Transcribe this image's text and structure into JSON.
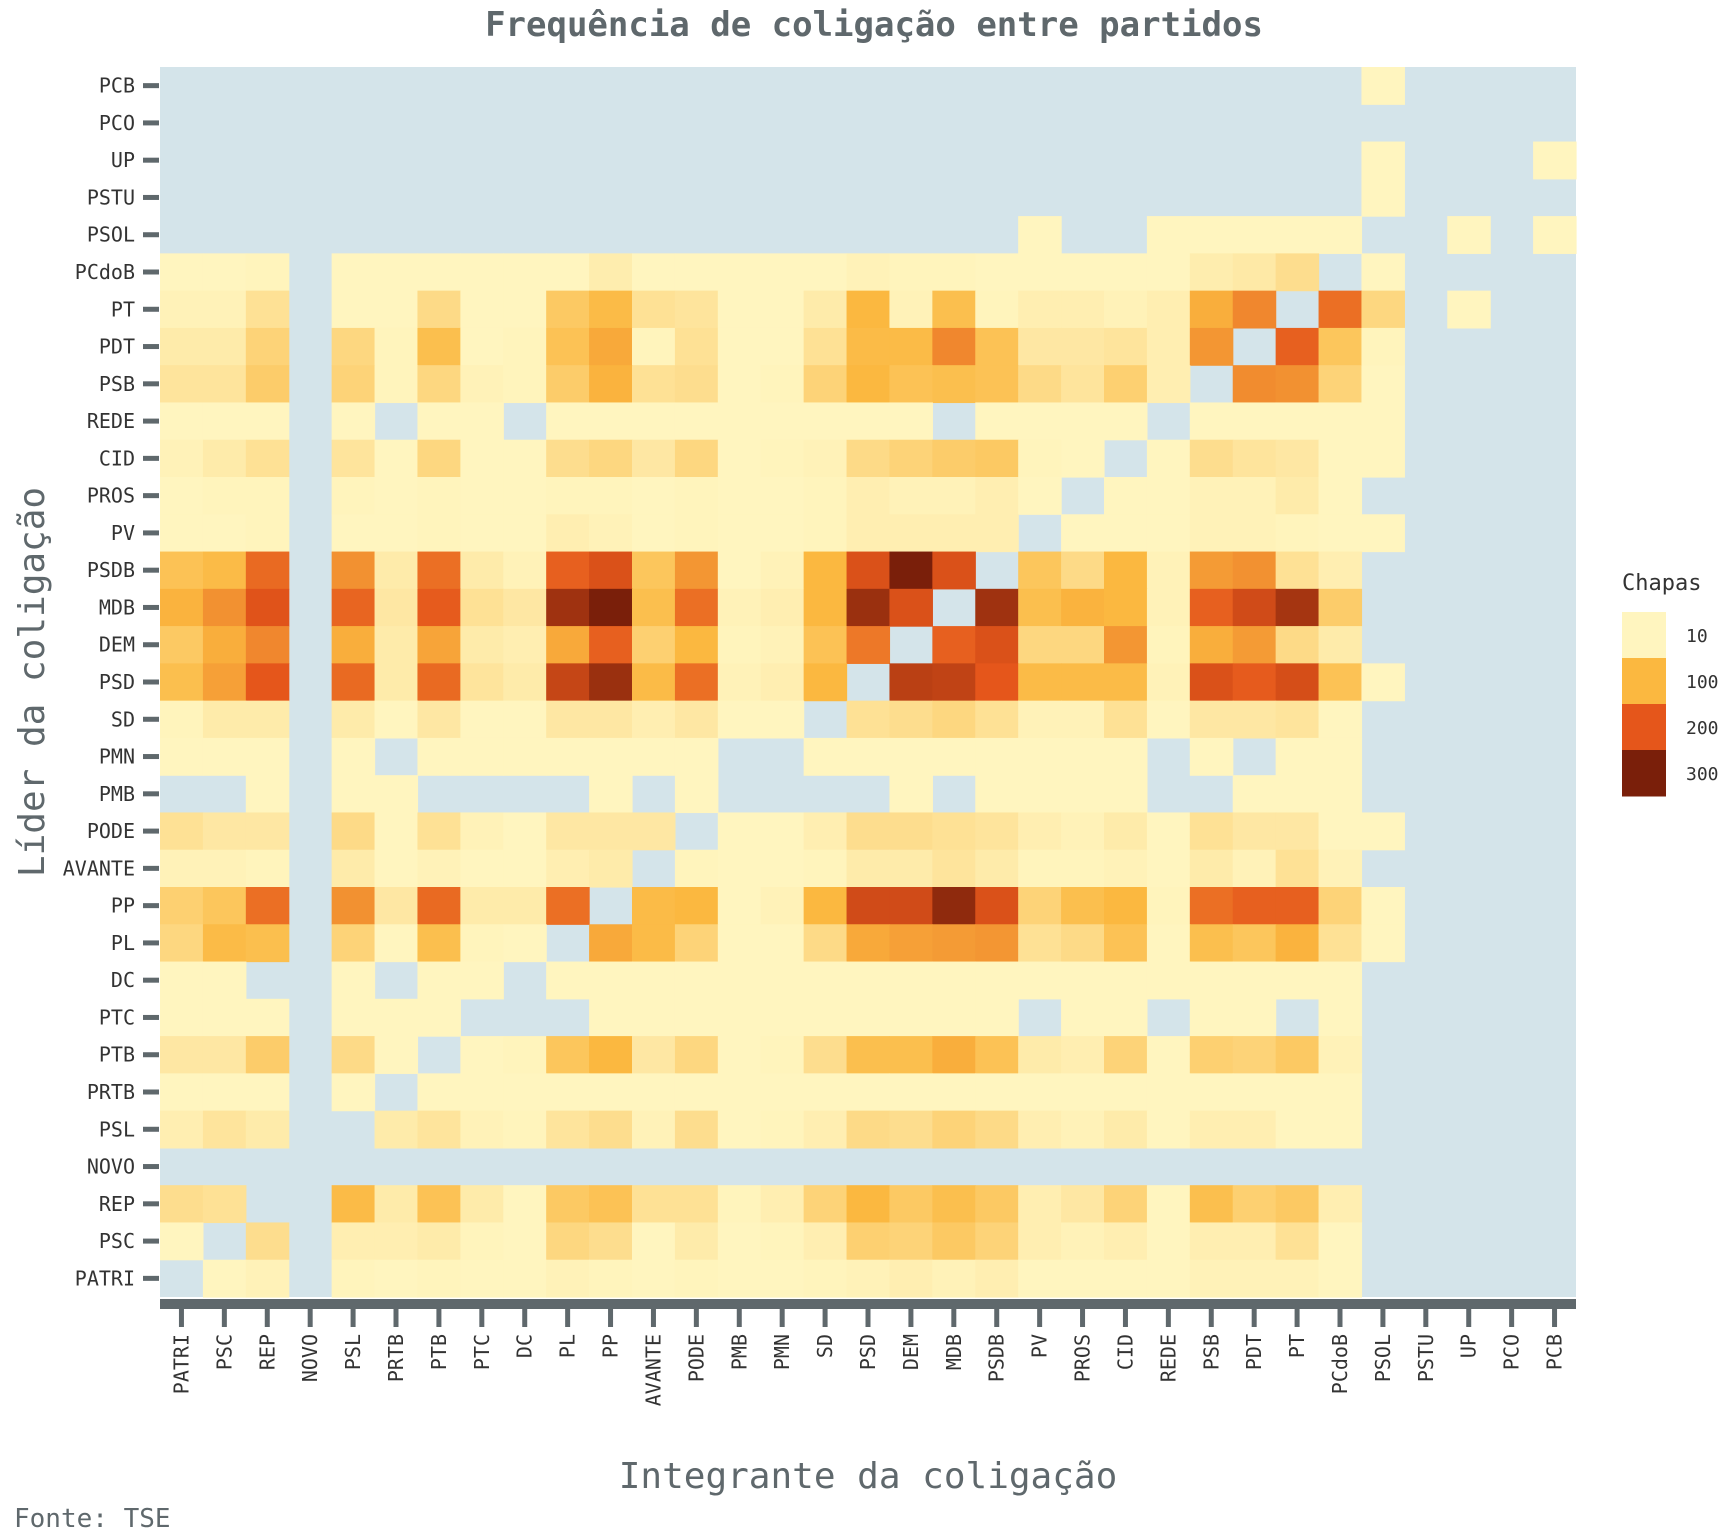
{
  "chart_data": {
    "type": "heatmap",
    "title": "Frequência de coligação entre partidos",
    "xlabel": "Integrante da coligação",
    "ylabel": "Líder da coligação",
    "caption": "Fonte: TSE",
    "legend": {
      "title": "Chapas",
      "ticks": [
        10,
        100,
        200,
        300
      ],
      "tick_labels": [
        "10",
        "100",
        "200",
        "300"
      ],
      "colors": [
        "#FFF5BF",
        "#FBB840",
        "#E5561B",
        "#7A1F0A"
      ],
      "placement": "right"
    },
    "colors": {
      "missing": "#D4E4EA",
      "text": "#5F686C",
      "axis": "#5F686C"
    },
    "x_categories": [
      "PATRI",
      "PSC",
      "REP",
      "NOVO",
      "PSL",
      "PRTB",
      "PTB",
      "PTC",
      "DC",
      "PL",
      "PP",
      "AVANTE",
      "PODE",
      "PMB",
      "PMN",
      "SD",
      "PSD",
      "DEM",
      "MDB",
      "PSDB",
      "PV",
      "PROS",
      "CID",
      "REDE",
      "PSB",
      "PDT",
      "PT",
      "PCdoB",
      "PSOL",
      "PSTU",
      "UP",
      "PCO",
      "PCB"
    ],
    "y_categories": [
      "PCB",
      "PCO",
      "UP",
      "PSTU",
      "PSOL",
      "PCdoB",
      "PT",
      "PDT",
      "PSB",
      "REDE",
      "CID",
      "PROS",
      "PV",
      "PSDB",
      "MDB",
      "DEM",
      "PSD",
      "SD",
      "PMN",
      "PMB",
      "PODE",
      "AVANTE",
      "PP",
      "PL",
      "DC",
      "PTC",
      "PTB",
      "PRTB",
      "PSL",
      "NOVO",
      "REP",
      "PSC",
      "PATRI"
    ],
    "grid": false,
    "values": [
      [
        null,
        null,
        null,
        null,
        null,
        null,
        null,
        null,
        null,
        null,
        null,
        null,
        null,
        null,
        null,
        null,
        null,
        null,
        null,
        null,
        null,
        null,
        null,
        null,
        null,
        null,
        null,
        null,
        2,
        null,
        null,
        null,
        null
      ],
      [
        null,
        null,
        null,
        null,
        null,
        null,
        null,
        null,
        null,
        null,
        null,
        null,
        null,
        null,
        null,
        null,
        null,
        null,
        null,
        null,
        null,
        null,
        null,
        null,
        null,
        null,
        null,
        null,
        null,
        null,
        null,
        null,
        null
      ],
      [
        null,
        null,
        null,
        null,
        null,
        null,
        null,
        null,
        null,
        null,
        null,
        null,
        null,
        null,
        null,
        null,
        null,
        null,
        null,
        null,
        null,
        null,
        null,
        null,
        null,
        null,
        null,
        null,
        2,
        null,
        null,
        null,
        2
      ],
      [
        null,
        null,
        null,
        null,
        null,
        null,
        null,
        null,
        null,
        null,
        null,
        null,
        null,
        null,
        null,
        null,
        null,
        null,
        null,
        null,
        null,
        null,
        null,
        null,
        null,
        null,
        null,
        null,
        2,
        null,
        null,
        null,
        null
      ],
      [
        null,
        null,
        null,
        null,
        null,
        null,
        null,
        null,
        null,
        null,
        null,
        null,
        null,
        null,
        null,
        null,
        null,
        null,
        null,
        null,
        2,
        null,
        null,
        2,
        2,
        2,
        5,
        5,
        null,
        null,
        5,
        null,
        8
      ],
      [
        8,
        8,
        12,
        null,
        5,
        5,
        8,
        5,
        5,
        8,
        22,
        5,
        5,
        5,
        5,
        8,
        15,
        12,
        12,
        8,
        5,
        8,
        8,
        5,
        22,
        28,
        45,
        null,
        8,
        null,
        null,
        null,
        null
      ],
      [
        15,
        15,
        40,
        null,
        5,
        5,
        50,
        8,
        8,
        75,
        95,
        40,
        35,
        5,
        5,
        25,
        100,
        15,
        90,
        12,
        20,
        20,
        15,
        20,
        110,
        150,
        null,
        175,
        55,
        null,
        8,
        null,
        null
      ],
      [
        25,
        25,
        60,
        null,
        55,
        12,
        90,
        8,
        12,
        85,
        115,
        12,
        40,
        5,
        5,
        40,
        95,
        95,
        150,
        85,
        30,
        30,
        35,
        20,
        135,
        null,
        190,
        80,
        12,
        null,
        null,
        null,
        null
      ],
      [
        35,
        35,
        70,
        null,
        60,
        12,
        55,
        15,
        12,
        70,
        105,
        40,
        45,
        5,
        12,
        60,
        100,
        85,
        90,
        85,
        50,
        35,
        65,
        20,
        null,
        145,
        140,
        60,
        8,
        null,
        null,
        null,
        null
      ],
      [
        5,
        5,
        5,
        null,
        5,
        null,
        5,
        5,
        null,
        5,
        5,
        5,
        5,
        5,
        5,
        5,
        5,
        5,
        null,
        5,
        5,
        5,
        5,
        null,
        5,
        5,
        8,
        5,
        5,
        null,
        null,
        null,
        null
      ],
      [
        15,
        25,
        40,
        null,
        35,
        10,
        55,
        10,
        10,
        45,
        55,
        30,
        55,
        5,
        12,
        15,
        50,
        60,
        70,
        75,
        12,
        10,
        null,
        8,
        45,
        35,
        30,
        10,
        8,
        null,
        null,
        null,
        null
      ],
      [
        8,
        12,
        12,
        null,
        12,
        8,
        12,
        10,
        10,
        12,
        12,
        10,
        12,
        5,
        10,
        12,
        20,
        15,
        15,
        20,
        8,
        null,
        8,
        8,
        15,
        15,
        25,
        10,
        null,
        null,
        null,
        null,
        null
      ],
      [
        10,
        8,
        12,
        null,
        10,
        8,
        12,
        8,
        8,
        20,
        15,
        10,
        12,
        5,
        8,
        12,
        20,
        20,
        20,
        20,
        null,
        8,
        10,
        8,
        15,
        15,
        12,
        10,
        8,
        null,
        null,
        null,
        null
      ],
      [
        85,
        95,
        180,
        null,
        140,
        25,
        175,
        25,
        15,
        190,
        210,
        80,
        135,
        10,
        15,
        100,
        210,
        330,
        210,
        null,
        80,
        50,
        100,
        15,
        130,
        140,
        40,
        20,
        null,
        null,
        null,
        null,
        null
      ],
      [
        105,
        140,
        205,
        null,
        185,
        30,
        195,
        40,
        30,
        265,
        320,
        90,
        175,
        15,
        20,
        100,
        270,
        210,
        null,
        265,
        90,
        105,
        100,
        15,
        190,
        220,
        260,
        70,
        null,
        null,
        null,
        null,
        null
      ],
      [
        75,
        110,
        150,
        null,
        110,
        25,
        120,
        25,
        20,
        115,
        190,
        65,
        100,
        12,
        15,
        85,
        165,
        null,
        190,
        210,
        55,
        55,
        135,
        12,
        110,
        130,
        50,
        25,
        null,
        null,
        null,
        null,
        null
      ],
      [
        90,
        125,
        200,
        null,
        180,
        25,
        180,
        35,
        25,
        230,
        270,
        95,
        175,
        15,
        20,
        100,
        null,
        240,
        235,
        200,
        95,
        95,
        95,
        15,
        210,
        195,
        215,
        85,
        5,
        null,
        null,
        null,
        null
      ],
      [
        12,
        25,
        25,
        null,
        25,
        10,
        30,
        10,
        10,
        30,
        30,
        20,
        30,
        5,
        10,
        null,
        40,
        45,
        55,
        40,
        15,
        15,
        40,
        5,
        30,
        30,
        35,
        10,
        null,
        null,
        null,
        null,
        null
      ],
      [
        5,
        5,
        5,
        null,
        5,
        null,
        5,
        5,
        5,
        5,
        5,
        5,
        5,
        null,
        null,
        5,
        5,
        5,
        5,
        5,
        5,
        5,
        5,
        null,
        5,
        null,
        5,
        5,
        null,
        null,
        null,
        null,
        null
      ],
      [
        null,
        null,
        5,
        null,
        5,
        5,
        null,
        null,
        null,
        null,
        5,
        null,
        5,
        null,
        null,
        null,
        null,
        5,
        null,
        5,
        5,
        5,
        5,
        null,
        null,
        5,
        5,
        5,
        null,
        null,
        null,
        null,
        null
      ],
      [
        40,
        30,
        30,
        null,
        50,
        10,
        40,
        15,
        10,
        30,
        30,
        30,
        null,
        5,
        10,
        20,
        45,
        45,
        40,
        35,
        20,
        15,
        25,
        5,
        40,
        30,
        30,
        10,
        5,
        null,
        null,
        null,
        null
      ],
      [
        15,
        15,
        12,
        null,
        25,
        8,
        15,
        10,
        10,
        20,
        25,
        null,
        12,
        8,
        10,
        12,
        25,
        25,
        35,
        25,
        12,
        12,
        15,
        5,
        25,
        15,
        40,
        15,
        null,
        null,
        null,
        null,
        null
      ],
      [
        65,
        80,
        175,
        null,
        140,
        30,
        180,
        25,
        25,
        175,
        null,
        95,
        100,
        10,
        15,
        100,
        220,
        220,
        280,
        210,
        60,
        90,
        100,
        12,
        175,
        190,
        190,
        60,
        5,
        null,
        null,
        null,
        null
      ],
      [
        55,
        95,
        90,
        null,
        60,
        10,
        90,
        12,
        10,
        null,
        115,
        95,
        60,
        5,
        10,
        50,
        115,
        125,
        130,
        135,
        40,
        50,
        85,
        8,
        90,
        80,
        105,
        40,
        5,
        null,
        null,
        null,
        null
      ],
      [
        5,
        5,
        null,
        null,
        5,
        null,
        5,
        5,
        null,
        5,
        5,
        5,
        5,
        5,
        5,
        5,
        5,
        5,
        5,
        5,
        5,
        5,
        5,
        5,
        5,
        5,
        5,
        5,
        null,
        null,
        null,
        null,
        null
      ],
      [
        5,
        5,
        5,
        null,
        5,
        5,
        5,
        null,
        null,
        null,
        5,
        5,
        5,
        5,
        5,
        5,
        5,
        5,
        5,
        5,
        null,
        5,
        5,
        null,
        5,
        5,
        null,
        5,
        null,
        null,
        null,
        null,
        null
      ],
      [
        30,
        30,
        70,
        null,
        50,
        10,
        null,
        10,
        12,
        80,
        100,
        30,
        55,
        10,
        12,
        45,
        90,
        90,
        110,
        85,
        25,
        20,
        60,
        10,
        65,
        60,
        75,
        15,
        null,
        null,
        null,
        null,
        null
      ],
      [
        5,
        5,
        5,
        null,
        5,
        null,
        5,
        5,
        5,
        5,
        5,
        5,
        5,
        5,
        5,
        5,
        5,
        5,
        5,
        5,
        5,
        5,
        5,
        5,
        5,
        5,
        5,
        5,
        null,
        null,
        null,
        null,
        null
      ],
      [
        20,
        35,
        25,
        null,
        null,
        25,
        35,
        15,
        12,
        35,
        45,
        15,
        45,
        5,
        12,
        20,
        50,
        45,
        60,
        50,
        20,
        15,
        25,
        8,
        20,
        20,
        10,
        8,
        null,
        null,
        null,
        null,
        null
      ],
      [
        null,
        null,
        null,
        null,
        null,
        null,
        null,
        null,
        null,
        null,
        null,
        null,
        null,
        null,
        null,
        null,
        null,
        null,
        null,
        null,
        null,
        null,
        null,
        null,
        null,
        null,
        null,
        null,
        null,
        null,
        null,
        null,
        null
      ],
      [
        45,
        40,
        null,
        null,
        95,
        25,
        85,
        25,
        10,
        75,
        85,
        40,
        40,
        12,
        20,
        60,
        100,
        75,
        90,
        75,
        20,
        30,
        60,
        10,
        90,
        65,
        75,
        20,
        null,
        null,
        null,
        null,
        null
      ],
      [
        10,
        null,
        45,
        null,
        20,
        20,
        25,
        12,
        10,
        55,
        45,
        10,
        25,
        10,
        12,
        20,
        65,
        60,
        75,
        60,
        20,
        15,
        20,
        8,
        20,
        20,
        40,
        8,
        null,
        null,
        null,
        null,
        null
      ],
      [
        null,
        8,
        15,
        null,
        12,
        8,
        12,
        10,
        8,
        15,
        12,
        10,
        12,
        5,
        8,
        12,
        15,
        20,
        15,
        20,
        8,
        10,
        10,
        5,
        15,
        15,
        15,
        8,
        null,
        null,
        null,
        null,
        null
      ]
    ]
  }
}
